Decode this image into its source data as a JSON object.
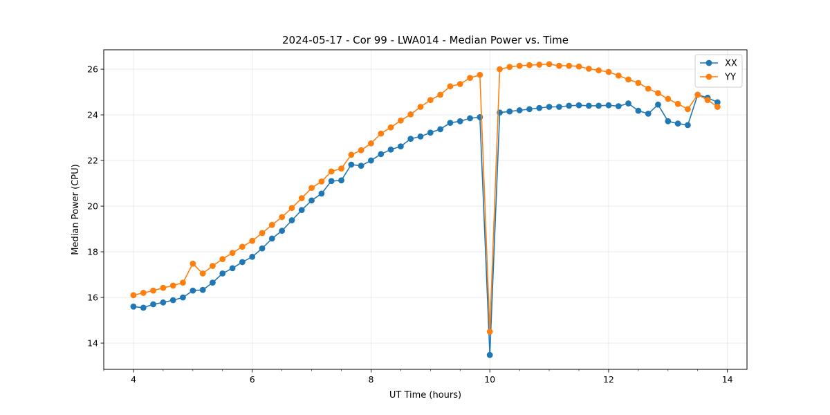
{
  "chart_data": {
    "type": "line",
    "title": "2024-05-17 - Cor 99 - LWA014 - Median Power vs. Time",
    "xlabel": "UT Time (hours)",
    "ylabel": "Median Power (CPU)",
    "xlim": [
      3.5,
      14.33
    ],
    "ylim": [
      12.85,
      26.85
    ],
    "xticks": [
      4,
      6,
      8,
      10,
      12,
      14
    ],
    "xtick_labels": [
      "4",
      "6",
      "8",
      "10",
      "12",
      "14"
    ],
    "yticks": [
      14,
      16,
      18,
      20,
      22,
      24,
      26
    ],
    "ytick_labels": [
      "14",
      "16",
      "18",
      "20",
      "22",
      "24",
      "26"
    ],
    "grid": true,
    "legend_position": "top-right",
    "series": [
      {
        "name": "XX",
        "color": "#1f77b4",
        "x": [
          4.0,
          4.167,
          4.333,
          4.5,
          4.667,
          4.833,
          5.0,
          5.167,
          5.333,
          5.5,
          5.667,
          5.833,
          6.0,
          6.167,
          6.333,
          6.5,
          6.667,
          6.833,
          7.0,
          7.167,
          7.333,
          7.5,
          7.667,
          7.833,
          8.0,
          8.167,
          8.333,
          8.5,
          8.667,
          8.833,
          9.0,
          9.167,
          9.333,
          9.5,
          9.667,
          9.833,
          10.0,
          10.167,
          10.333,
          10.5,
          10.667,
          10.833,
          11.0,
          11.167,
          11.333,
          11.5,
          11.667,
          11.833,
          12.0,
          12.167,
          12.333,
          12.5,
          12.667,
          12.833,
          13.0,
          13.167,
          13.333,
          13.5,
          13.667,
          13.833
        ],
        "y": [
          15.6,
          15.55,
          15.7,
          15.78,
          15.88,
          16.0,
          16.3,
          16.33,
          16.65,
          17.05,
          17.28,
          17.55,
          17.78,
          18.15,
          18.58,
          18.92,
          19.38,
          19.83,
          20.25,
          20.55,
          21.1,
          21.13,
          21.82,
          21.77,
          22.0,
          22.28,
          22.48,
          22.62,
          22.95,
          23.05,
          23.22,
          23.37,
          23.65,
          23.72,
          23.85,
          23.9,
          13.48,
          24.1,
          24.15,
          24.2,
          24.25,
          24.3,
          24.35,
          24.35,
          24.4,
          24.42,
          24.4,
          24.4,
          24.42,
          24.38,
          24.5,
          24.18,
          24.05,
          24.45,
          23.72,
          23.62,
          23.55,
          24.88,
          24.75,
          24.55
        ]
      },
      {
        "name": "YY",
        "color": "#ff7f0e",
        "x": [
          4.0,
          4.167,
          4.333,
          4.5,
          4.667,
          4.833,
          5.0,
          5.167,
          5.333,
          5.5,
          5.667,
          5.833,
          6.0,
          6.167,
          6.333,
          6.5,
          6.667,
          6.833,
          7.0,
          7.167,
          7.333,
          7.5,
          7.667,
          7.833,
          8.0,
          8.167,
          8.333,
          8.5,
          8.667,
          8.833,
          9.0,
          9.167,
          9.333,
          9.5,
          9.667,
          9.833,
          10.0,
          10.167,
          10.333,
          10.5,
          10.667,
          10.833,
          11.0,
          11.167,
          11.333,
          11.5,
          11.667,
          11.833,
          12.0,
          12.167,
          12.333,
          12.5,
          12.667,
          12.833,
          13.0,
          13.167,
          13.333,
          13.5,
          13.667,
          13.833
        ],
        "y": [
          16.1,
          16.2,
          16.3,
          16.42,
          16.52,
          16.65,
          17.48,
          17.05,
          17.38,
          17.68,
          17.95,
          18.22,
          18.48,
          18.82,
          19.18,
          19.52,
          19.92,
          20.35,
          20.8,
          21.08,
          21.52,
          21.65,
          22.25,
          22.45,
          22.75,
          23.18,
          23.45,
          23.75,
          24.02,
          24.35,
          24.65,
          24.88,
          25.25,
          25.35,
          25.62,
          25.75,
          14.5,
          26.0,
          26.1,
          26.15,
          26.18,
          26.2,
          26.22,
          26.15,
          26.15,
          26.12,
          26.02,
          25.95,
          25.88,
          25.72,
          25.55,
          25.4,
          25.15,
          24.95,
          24.7,
          24.48,
          24.25,
          24.88,
          24.65,
          24.35
        ]
      }
    ]
  }
}
